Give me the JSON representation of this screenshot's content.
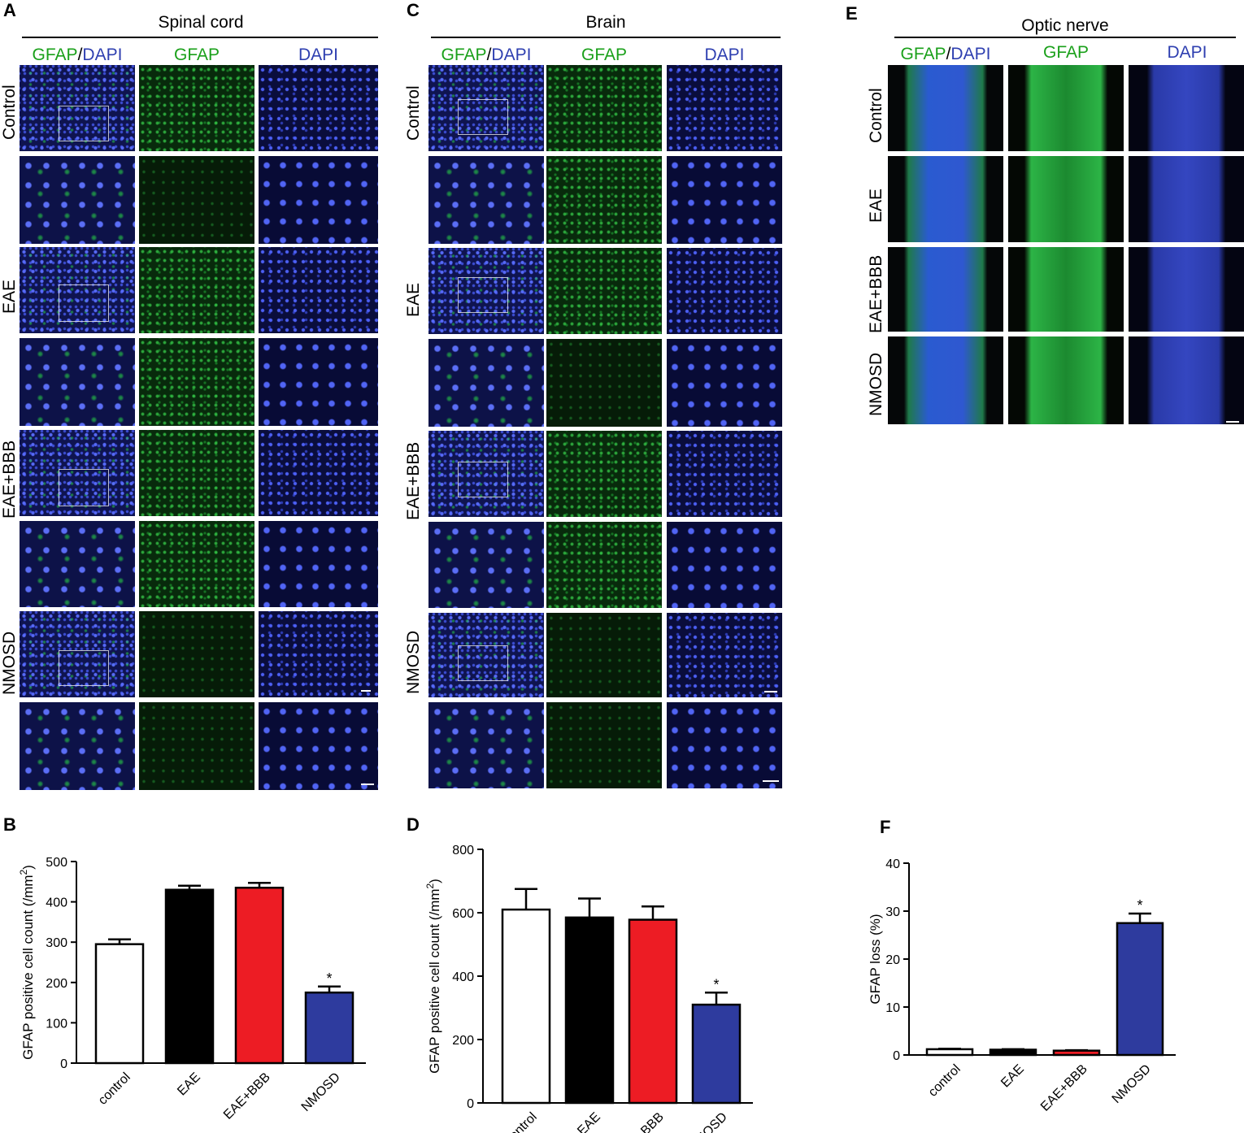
{
  "letters": {
    "a": "A",
    "b": "B",
    "c": "C",
    "d": "D",
    "e": "E",
    "f": "F"
  },
  "titles": {
    "spinal": "Spinal cord",
    "brain": "Brain",
    "optic": "Optic nerve"
  },
  "channels": {
    "merged_green": "GFAP",
    "slash": "/",
    "merged_blue": "DAPI",
    "gfap": "GFAP",
    "dapi": "DAPI"
  },
  "groups": [
    "Control",
    "EAE",
    "EAE+BBB",
    "NMOSD"
  ],
  "chart_data": [
    {
      "type": "bar",
      "panel": "B",
      "categories": [
        "control",
        "EAE",
        "EAE+BBB",
        "NMOSD"
      ],
      "values": [
        295,
        430,
        435,
        175
      ],
      "errors": [
        12,
        10,
        12,
        15
      ],
      "ylabel": "GFAP positive cell count (/mm",
      "ylabel_sup": "2",
      "ylabel_end": ")",
      "ylim": [
        0,
        500
      ],
      "yticks": [
        0,
        100,
        200,
        300,
        400,
        500
      ],
      "significance": [
        "",
        "",
        "",
        "*"
      ],
      "colors": [
        "#ffffff",
        "#000000",
        "#ed1c24",
        "#2e3b9e"
      ]
    },
    {
      "type": "bar",
      "panel": "D",
      "categories": [
        "control",
        "EAE",
        "EAE+BBB",
        "NMOSD"
      ],
      "values": [
        610,
        585,
        578,
        310
      ],
      "errors": [
        65,
        60,
        42,
        38
      ],
      "ylabel": "GFAP positive cell count (/mm",
      "ylabel_sup": "2",
      "ylabel_end": ")",
      "ylim": [
        0,
        800
      ],
      "yticks": [
        0,
        200,
        400,
        600,
        800
      ],
      "significance": [
        "",
        "",
        "",
        "*"
      ],
      "colors": [
        "#ffffff",
        "#000000",
        "#ed1c24",
        "#2e3b9e"
      ]
    },
    {
      "type": "bar",
      "panel": "F",
      "categories": [
        "control",
        "EAE",
        "EAE+BBB",
        "NMOSD"
      ],
      "values": [
        1.2,
        1.1,
        0.9,
        27.5
      ],
      "errors": [
        0.1,
        0.1,
        0.1,
        2.0
      ],
      "ylabel": "GFAP loss (%)",
      "ylabel_sup": "",
      "ylabel_end": "",
      "ylim": [
        0,
        40
      ],
      "yticks": [
        0,
        10,
        20,
        30,
        40
      ],
      "significance": [
        "",
        "",
        "",
        "*"
      ],
      "colors": [
        "#ffffff",
        "#000000",
        "#ed1c24",
        "#2e3b9e"
      ]
    }
  ]
}
